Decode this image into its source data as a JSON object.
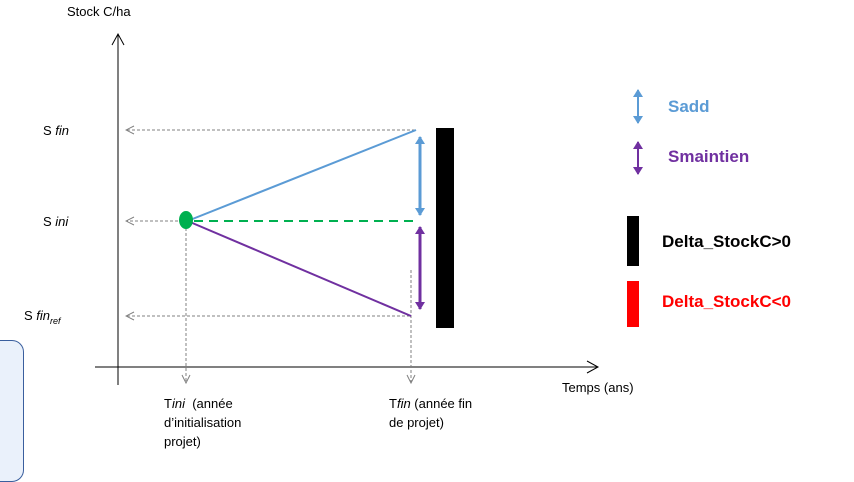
{
  "axes": {
    "y_label": "Stock C/ha",
    "x_label": "Temps (ans)"
  },
  "y_levels": {
    "s_fin": {
      "prefix": "S",
      "italic": "fin"
    },
    "s_ini": {
      "prefix": "S",
      "italic": "ini"
    },
    "s_fin_ref": {
      "prefix": "S",
      "italic": "fin",
      "sub": "ref"
    }
  },
  "x_points": {
    "t_ini": {
      "prefix": "T",
      "italic": "ini",
      "rest": "  (année",
      "lines": [
        "d’initialisation",
        "projet)"
      ]
    },
    "t_fin": {
      "prefix": "T",
      "italic": "fin",
      "rest": " (année fin",
      "lines": [
        "de projet)"
      ]
    }
  },
  "legend": {
    "sadd": "Sadd",
    "smaintien": "Smaintien",
    "delta_pos": "Delta_StockC>0",
    "delta_neg": "Delta_StockC<0"
  },
  "colors": {
    "sadd": "#5b9bd5",
    "smaintien": "#7030a0",
    "dashed_green": "#00b050",
    "point_green": "#00b050",
    "delta_pos": "#000000",
    "delta_neg": "#ff0000",
    "axis": "#000000",
    "guide": "#808080"
  }
}
